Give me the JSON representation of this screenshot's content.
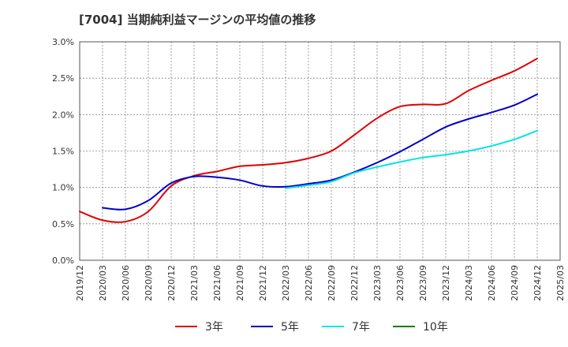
{
  "chart_data": {
    "type": "line",
    "title": "[7004]  当期純利益マージンの平均値の推移",
    "xlabel": "",
    "ylabel": "",
    "ylim": [
      0.0,
      3.0
    ],
    "y_ticks": [
      "0.0%",
      "0.5%",
      "1.0%",
      "1.5%",
      "2.0%",
      "2.5%",
      "3.0%"
    ],
    "y_tick_values": [
      0,
      0.5,
      1.0,
      1.5,
      2.0,
      2.5,
      3.0
    ],
    "x_tick_labels": [
      "2019/12",
      "2020/03",
      "2020/06",
      "2020/09",
      "2020/12",
      "2021/03",
      "2021/06",
      "2021/09",
      "2021/12",
      "2022/03",
      "2022/06",
      "2022/09",
      "2022/12",
      "2023/03",
      "2023/06",
      "2023/09",
      "2023/12",
      "2024/03",
      "2024/06",
      "2024/09",
      "2024/12",
      "2025/03"
    ],
    "grid": true,
    "legend_position": "bottom",
    "series": [
      {
        "name": "3年",
        "color": "#e00000",
        "x": [
          "2019/12",
          "2020/03",
          "2020/06",
          "2020/09",
          "2020/12",
          "2021/03",
          "2021/06",
          "2021/09",
          "2021/12",
          "2022/03",
          "2022/06",
          "2022/09",
          "2022/12",
          "2023/03",
          "2023/06",
          "2023/09",
          "2023/12",
          "2024/03",
          "2024/06",
          "2024/09",
          "2024/12"
        ],
        "values": [
          0.67,
          0.55,
          0.53,
          0.67,
          1.02,
          1.16,
          1.22,
          1.29,
          1.31,
          1.34,
          1.4,
          1.5,
          1.72,
          1.95,
          2.11,
          2.14,
          2.15,
          2.33,
          2.47,
          2.6,
          2.77
        ]
      },
      {
        "name": "5年",
        "color": "#0000cc",
        "x": [
          "2020/03",
          "2020/06",
          "2020/09",
          "2020/12",
          "2021/03",
          "2021/06",
          "2021/09",
          "2021/12",
          "2022/03",
          "2022/06",
          "2022/09",
          "2022/12",
          "2023/03",
          "2023/06",
          "2023/09",
          "2023/12",
          "2024/03",
          "2024/06",
          "2024/09",
          "2024/12"
        ],
        "values": [
          0.72,
          0.7,
          0.82,
          1.06,
          1.15,
          1.14,
          1.1,
          1.02,
          1.01,
          1.05,
          1.1,
          1.21,
          1.34,
          1.49,
          1.66,
          1.83,
          1.94,
          2.03,
          2.13,
          2.28
        ]
      },
      {
        "name": "7年",
        "color": "#00e5e5",
        "x": [
          "2022/03",
          "2022/06",
          "2022/09",
          "2022/12",
          "2023/03",
          "2023/06",
          "2023/09",
          "2023/12",
          "2024/03",
          "2024/06",
          "2024/09",
          "2024/12"
        ],
        "values": [
          0.99,
          1.03,
          1.08,
          1.2,
          1.28,
          1.35,
          1.41,
          1.45,
          1.5,
          1.57,
          1.66,
          1.78
        ]
      },
      {
        "name": "10年",
        "color": "#008000",
        "x": [],
        "values": []
      }
    ]
  }
}
